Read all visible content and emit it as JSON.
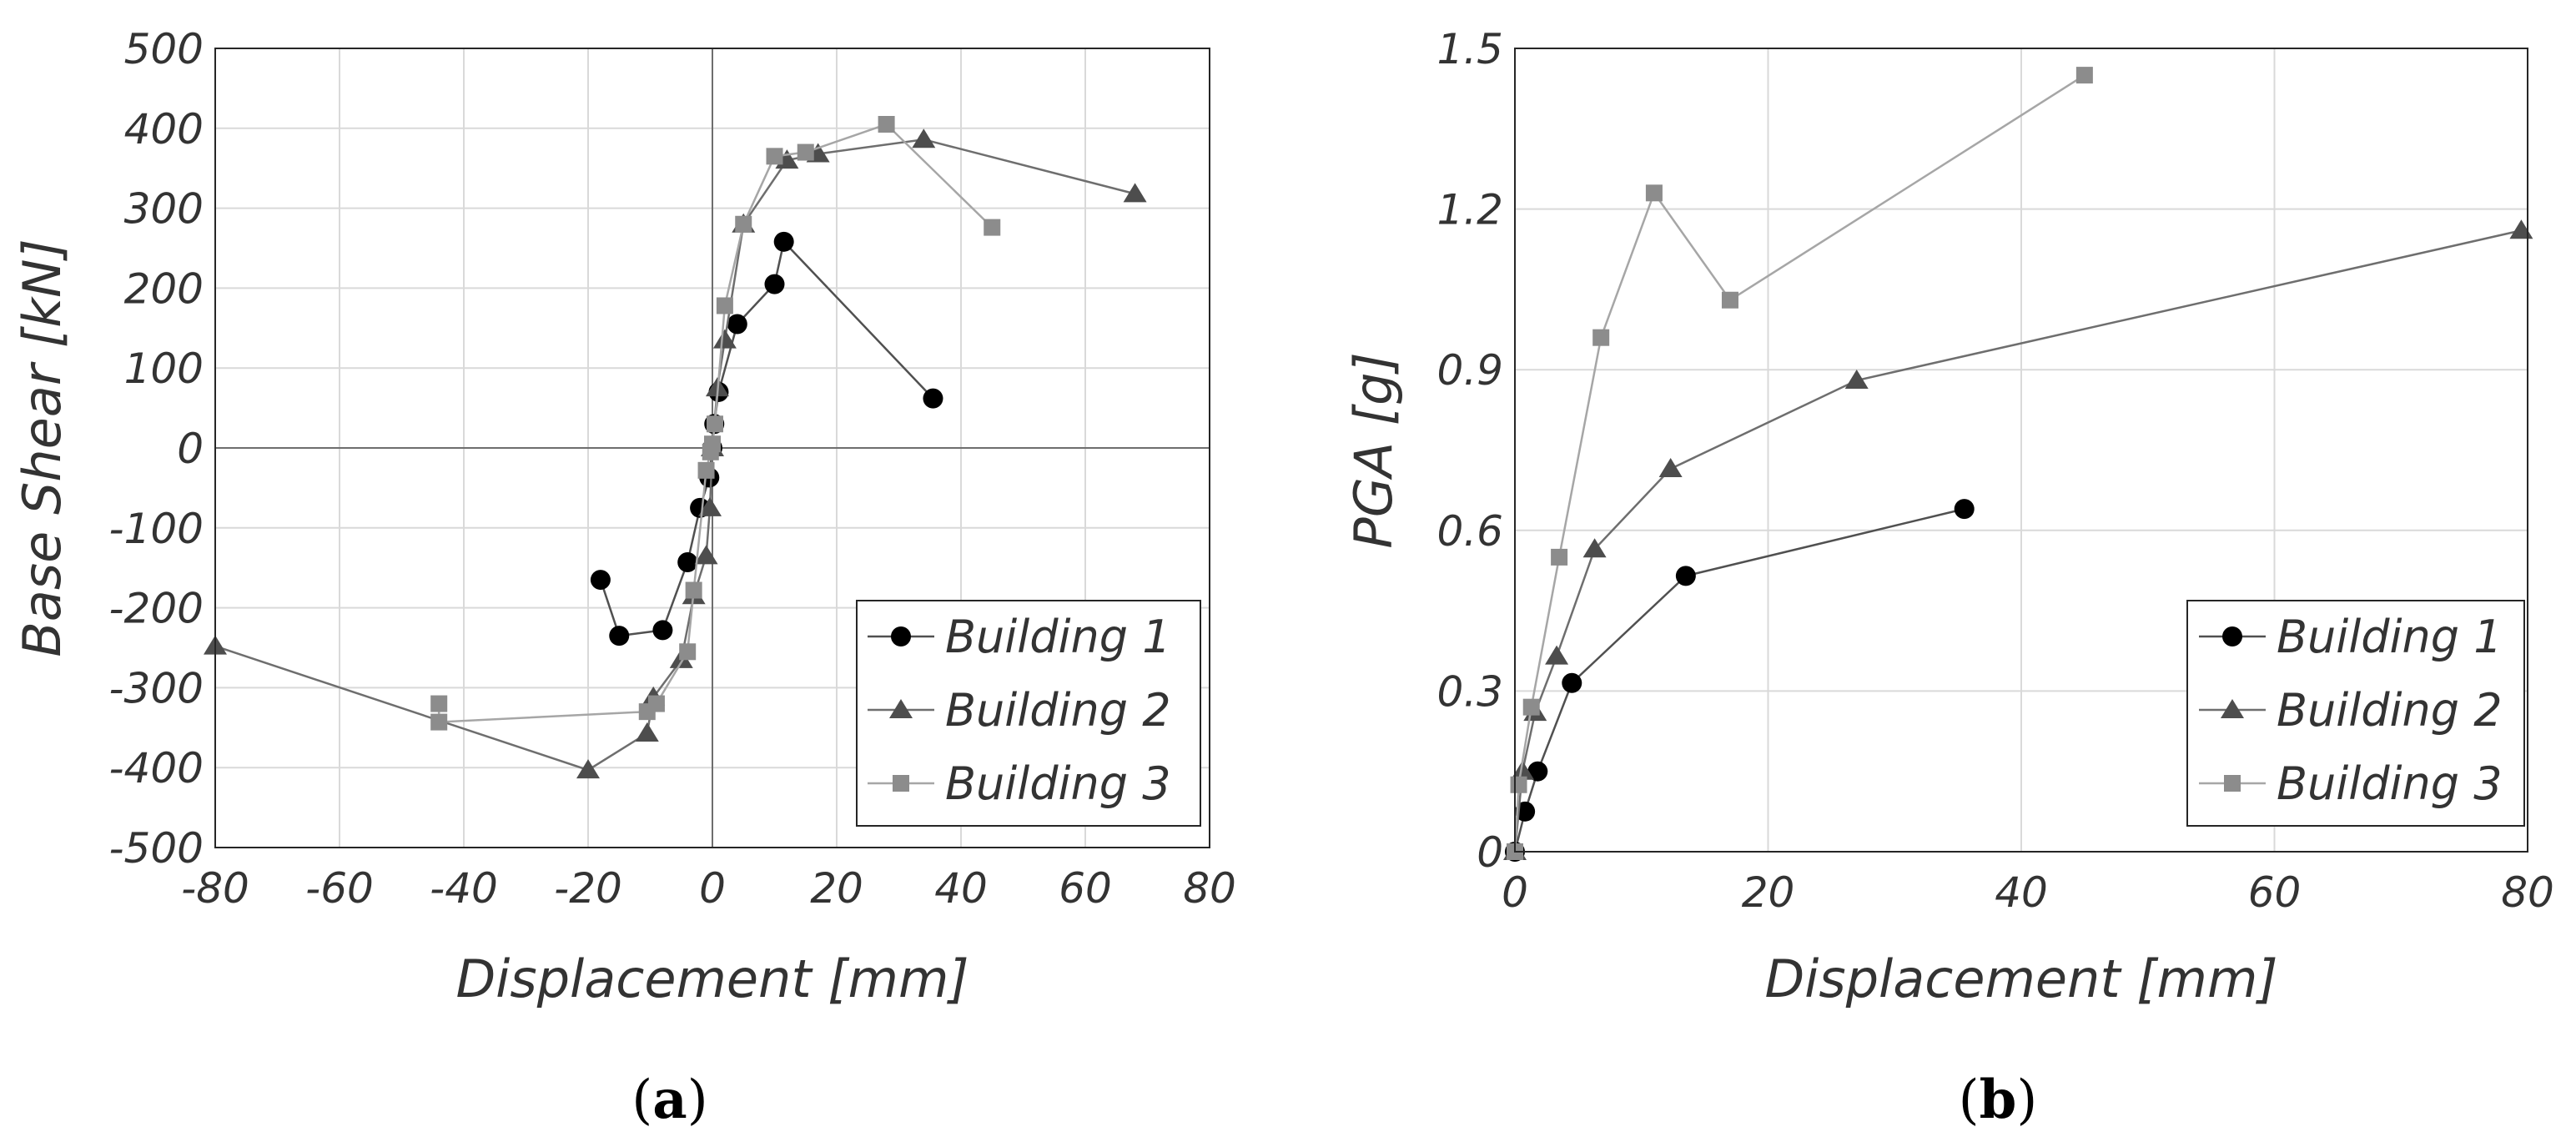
{
  "chart_data": [
    {
      "type": "line",
      "panel_label": "a",
      "xlabel": "Displacement [mm]",
      "ylabel": "Base Shear [kN]",
      "xlim": [
        -80,
        80
      ],
      "ylim": [
        -500,
        500
      ],
      "xticks": [
        -80,
        -60,
        -40,
        -20,
        0,
        20,
        40,
        60,
        80
      ],
      "yticks": [
        500,
        400,
        300,
        200,
        100,
        0,
        -100,
        -200,
        -300,
        -400,
        -500
      ],
      "grid": true,
      "zero_lines": true,
      "legend": "bottom-right",
      "series": [
        {
          "name": "Building 1",
          "marker": "circle",
          "color": "#000000",
          "line_color": "#505050",
          "x": [
            -18,
            -15,
            -8,
            -4,
            -2,
            -0.5,
            0,
            0.3,
            1,
            4,
            10,
            11.5,
            35.5
          ],
          "y": [
            -165,
            -235,
            -228,
            -143,
            -75,
            -37,
            0,
            30,
            70,
            155,
            205,
            258,
            62
          ]
        },
        {
          "name": "Building 2",
          "marker": "triangle",
          "color": "#4d4d4d",
          "line_color": "#6e6e6e",
          "x": [
            -80,
            -20,
            -10.5,
            -9.5,
            -5,
            -3,
            -1,
            -0.4,
            0,
            0.8,
            2,
            5,
            12,
            17,
            34,
            68
          ],
          "y": [
            -248,
            -403,
            -357,
            -312,
            -265,
            -185,
            -135,
            -75,
            0,
            75,
            135,
            280,
            360,
            368,
            386,
            318
          ]
        },
        {
          "name": "Building 3",
          "marker": "square",
          "color": "#8c8c8c",
          "line_color": "#a6a6a6",
          "x": [
            -44,
            -44,
            -10.5,
            -9,
            -4,
            -3,
            -1,
            -0.3,
            0,
            0.4,
            2,
            5,
            10,
            15,
            28,
            45
          ],
          "y": [
            -320,
            -343,
            -330,
            -320,
            -255,
            -178,
            -28,
            -5,
            5,
            30,
            178,
            280,
            365,
            370,
            405,
            276
          ]
        }
      ]
    },
    {
      "type": "line",
      "panel_label": "b",
      "xlabel": "Displacement [mm]",
      "ylabel": "PGA [g]",
      "xlim": [
        0,
        80
      ],
      "ylim": [
        0,
        1.5
      ],
      "xticks": [
        0,
        20,
        40,
        60,
        80
      ],
      "yticks": [
        1.5,
        1.2,
        0.9,
        0.6,
        0.3,
        0
      ],
      "ytick_labels": [
        "1.5",
        "1.2",
        "0.9",
        "0.6",
        "0.3",
        "0"
      ],
      "grid": true,
      "legend": "bottom-right",
      "series": [
        {
          "name": "Building 1",
          "marker": "circle",
          "color": "#000000",
          "line_color": "#505050",
          "x": [
            0,
            0.8,
            1.8,
            4.5,
            13.5,
            35.5
          ],
          "y": [
            0,
            0.075,
            0.15,
            0.315,
            0.515,
            0.64
          ]
        },
        {
          "name": "Building 2",
          "marker": "triangle",
          "color": "#4d4d4d",
          "line_color": "#6e6e6e",
          "x": [
            0,
            0.6,
            1.6,
            3.3,
            6.3,
            12.3,
            27,
            79.5
          ],
          "y": [
            0,
            0.15,
            0.26,
            0.365,
            0.565,
            0.715,
            0.88,
            1.16
          ]
        },
        {
          "name": "Building 3",
          "marker": "square",
          "color": "#8c8c8c",
          "line_color": "#a6a6a6",
          "x": [
            0,
            0.3,
            1.3,
            3.5,
            6.8,
            11,
            17,
            45
          ],
          "y": [
            0,
            0.125,
            0.27,
            0.55,
            0.96,
            1.23,
            1.03,
            1.45
          ]
        }
      ]
    }
  ]
}
